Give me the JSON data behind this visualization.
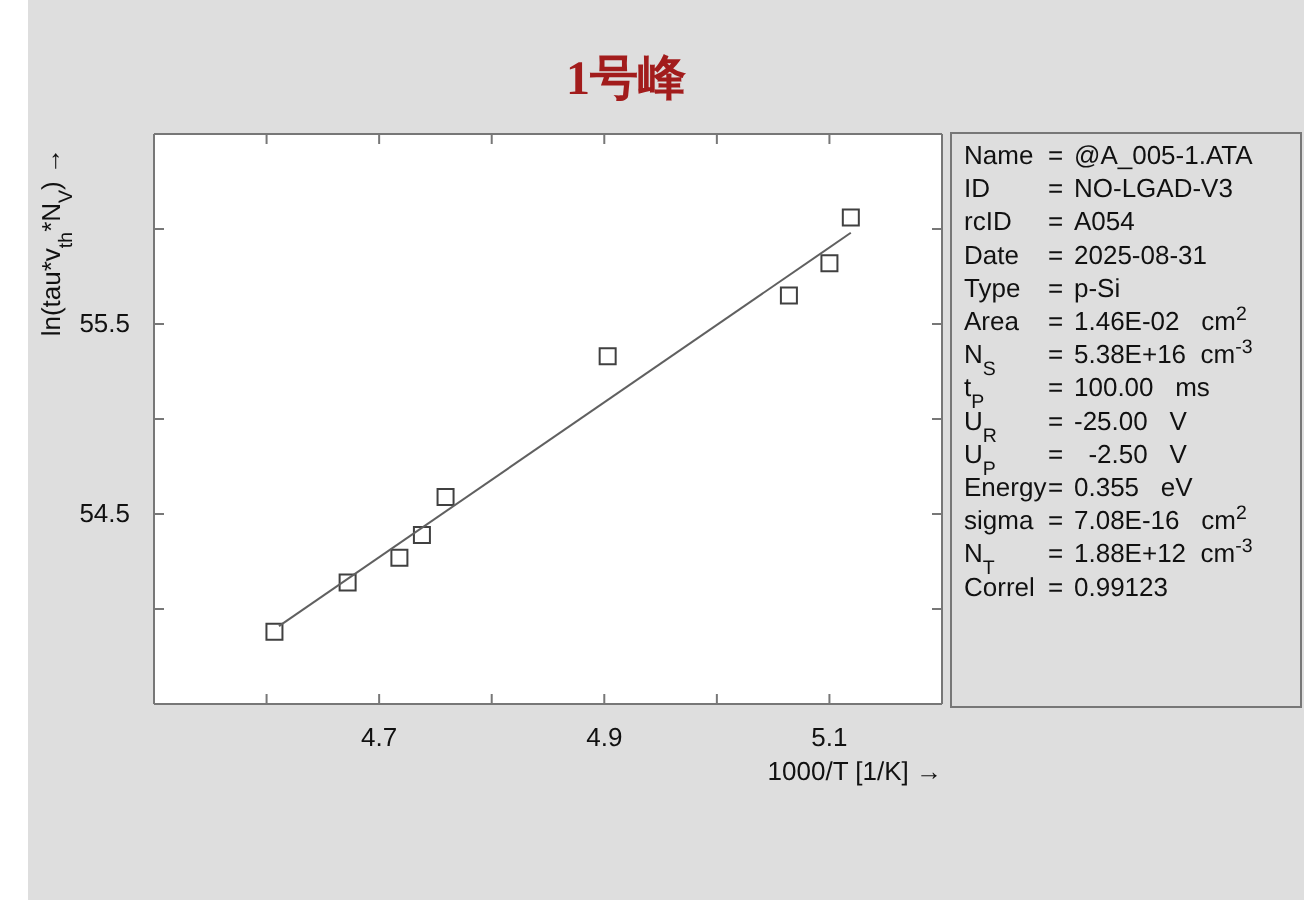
{
  "chart_data": [
    {
      "type": "scatter",
      "title": "1号峰",
      "xlabel": "1000/T [1/K] →",
      "ylabel": "ln(tau*v$_{th}$*N$_{V}$) →",
      "xlim": [
        4.5,
        5.2
      ],
      "ylim": [
        53.5,
        56.5
      ],
      "xticks": [
        {
          "value": 4.6,
          "label": null
        },
        4.7,
        {
          "value": 4.8,
          "label": null
        },
        4.9,
        {
          "value": 5.0,
          "label": null
        },
        5.1
      ],
      "yticks": [
        {
          "value": 54.0,
          "label": null
        },
        54.5,
        {
          "value": 55.0,
          "label": null
        },
        55.5,
        {
          "value": 56.0,
          "label": null
        }
      ],
      "series": [
        {
          "type": "scatter",
          "marker": "square",
          "color": "#404040",
          "x": [
            4.607,
            4.672,
            4.718,
            4.738,
            4.759,
            4.903,
            5.064,
            5.1,
            5.119
          ],
          "values": [
            53.88,
            54.14,
            54.27,
            54.39,
            54.59,
            55.33,
            55.65,
            55.82,
            56.06
          ]
        },
        {
          "type": "line",
          "color": "#606060",
          "x": [
            4.611,
            5.119
          ],
          "values": [
            53.91,
            55.98
          ]
        }
      ]
    },
    {
      "type": "other",
      "annotations": [
        "Name = @A_005-1.ATA",
        "ID = NO-LGAD-V3",
        "rcID = A054",
        "Date = 2025-08-31",
        "Type = p-Si",
        "Area = 1.46E-02   cm$^{2}$",
        "N$_{S}$ = 5.38E+16  cm$^{-3}$",
        "t$_{P}$ = 100.00   ms",
        "U$_{R}$ = -25.00   V",
        "U$_{P}$ =   -2.50   V",
        "Energy= 0.355   eV",
        "sigma = 7.08E-16   cm$^{2}$",
        "N$_{T}$ = 1.88E+12  cm$^{-3}$",
        "Correl = 0.99123"
      ]
    }
  ]
}
